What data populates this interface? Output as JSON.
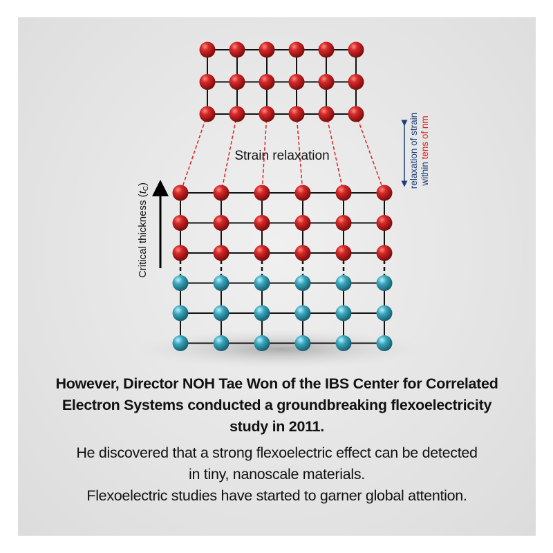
{
  "diagram": {
    "strain_label": "Strain relaxation",
    "critical_thickness_label": "Critical thickness (",
    "critical_thickness_symbol": "t",
    "critical_thickness_subscript": "C",
    "critical_thickness_close": ")",
    "right_label_line1": "relaxation of strain",
    "right_label_line2_prefix": "within ",
    "right_label_line2_highlight": "tens of nm",
    "top_lattice": {
      "columns": 6,
      "rows": 3
    },
    "bottom_lattice": {
      "columns": 6,
      "red_rows": 3,
      "blue_rows": 3
    },
    "colors": {
      "red_atom": "#c81e1e",
      "blue_atom": "#3aa6bc",
      "dashed_line": "#e02020",
      "navy": "#1d3f7a",
      "highlight": "#e02020"
    }
  },
  "caption": {
    "bold_lines": [
      "However, Director NOH Tae Won of the IBS Center for Correlated",
      "Electron Systems conducted a groundbreaking flexoelectricity",
      "study in 2011."
    ],
    "normal_lines": [
      "He discovered that a strong flexoelectric effect can be detected",
      "in tiny, nanoscale materials.",
      "Flexoelectric studies have started to garner global attention."
    ]
  }
}
